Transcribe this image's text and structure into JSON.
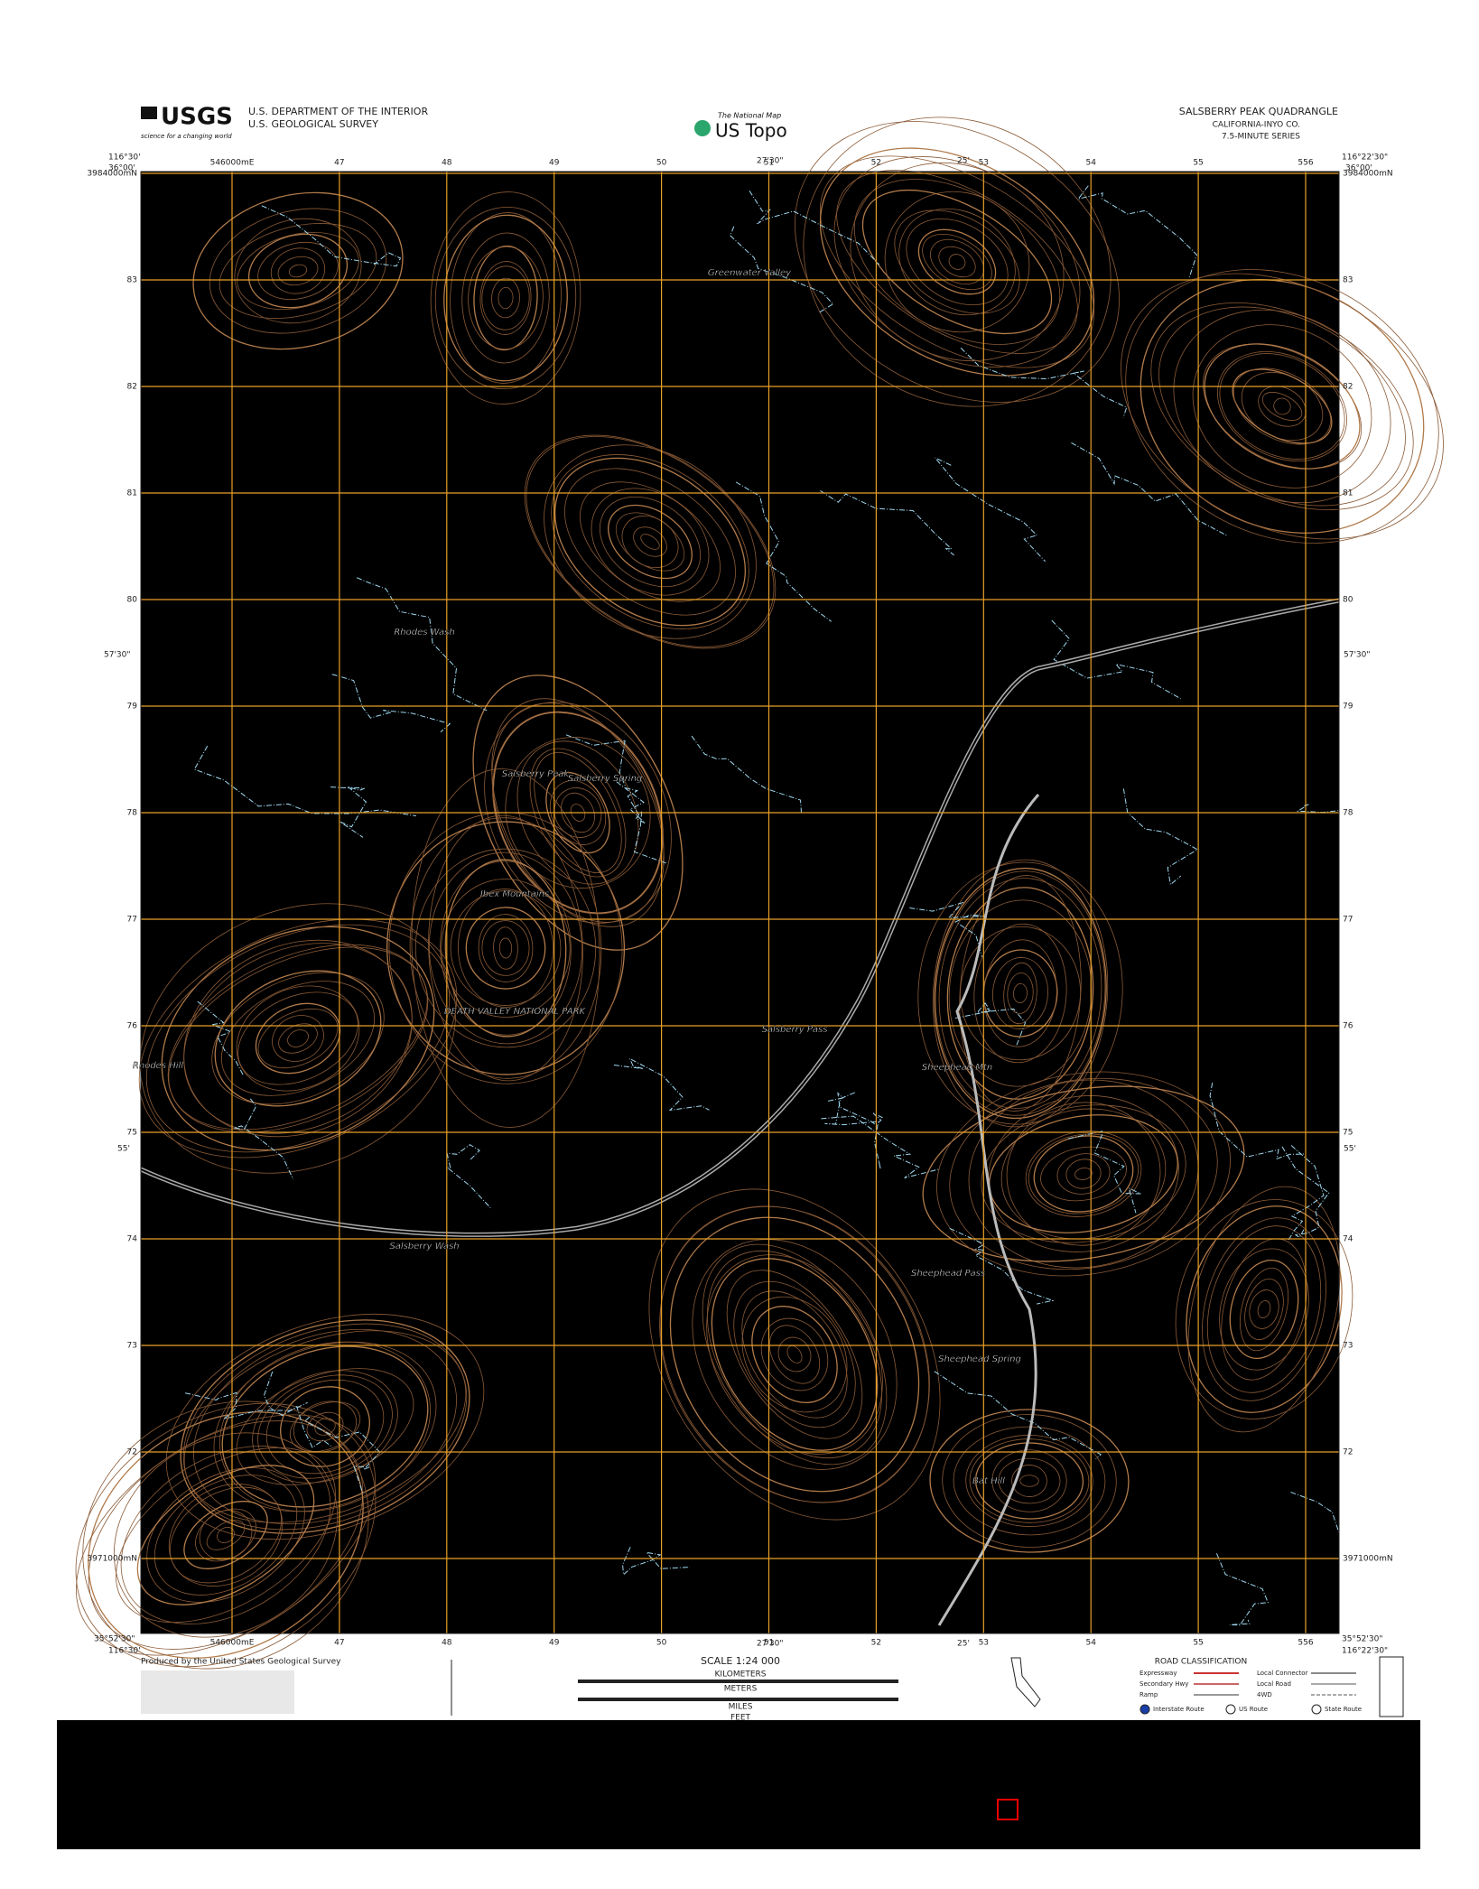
{
  "header": {
    "agency_logo": "USGS",
    "agency_tagline": "science for a changing world",
    "department": "U.S. DEPARTMENT OF THE INTERIOR",
    "survey": "U.S. GEOLOGICAL SURVEY",
    "national_map": "The National Map",
    "product": "US Topo",
    "quadrangle": "SALSBERRY PEAK QUADRANGLE",
    "state_county": "CALIFORNIA-INYO CO.",
    "series": "7.5-MINUTE SERIES"
  },
  "corners": {
    "top_left_lon": "116°30'",
    "top_left_lat": "36°00'",
    "top_right_lon": "116°22'30\"",
    "top_right_lat": "36°00'",
    "bottom_left_lat": "35°52'30\"",
    "bottom_left_lon": "116°30'",
    "bottom_right_lat": "35°52'30\"",
    "bottom_right_lon": "116°22'30\"",
    "mid_lon_1": "27'30\"",
    "mid_lon_2": "25'",
    "mid_lat_1": "57'30\"",
    "mid_lat_2": "55'"
  },
  "eastings": [
    "546000mE",
    "47",
    "48",
    "49",
    "50",
    "51",
    "52",
    "53",
    "54",
    "55",
    "556"
  ],
  "northings": [
    "3984000mN",
    "83",
    "82",
    "81",
    "80",
    "79",
    "78",
    "77",
    "76",
    "75",
    "74",
    "73",
    "72",
    "3971000mN"
  ],
  "places": [
    {
      "label": "Greenwater Valley"
    },
    {
      "label": "Salsberry Peak"
    },
    {
      "label": "Salsberry Spring"
    },
    {
      "label": "Rhodes Wash"
    },
    {
      "label": "Ibex Mountains"
    },
    {
      "label": "DEATH VALLEY NATIONAL PARK"
    },
    {
      "label": "Salsberry Pass"
    },
    {
      "label": "Sheephead Mtn"
    },
    {
      "label": "Salsberry Wash"
    },
    {
      "label": "Sheephead Pass"
    },
    {
      "label": "Sheephead Spring"
    },
    {
      "label": "Rhodes Hill"
    },
    {
      "label": "Bat Hill"
    }
  ],
  "footer": {
    "producer": "Produced by the United States Geological Survey",
    "scale": "SCALE 1:24 000",
    "kilometers": "KILOMETERS",
    "meters": "METERS",
    "miles": "MILES",
    "feet": "FEET",
    "road_heading": "ROAD CLASSIFICATION",
    "roads": [
      "Expressway",
      "Secondary Hwy",
      "Ramp",
      "Local Connector",
      "Local Road",
      "4WD"
    ],
    "shields": [
      "Interstate Route",
      "US Route",
      "State Route"
    ]
  }
}
